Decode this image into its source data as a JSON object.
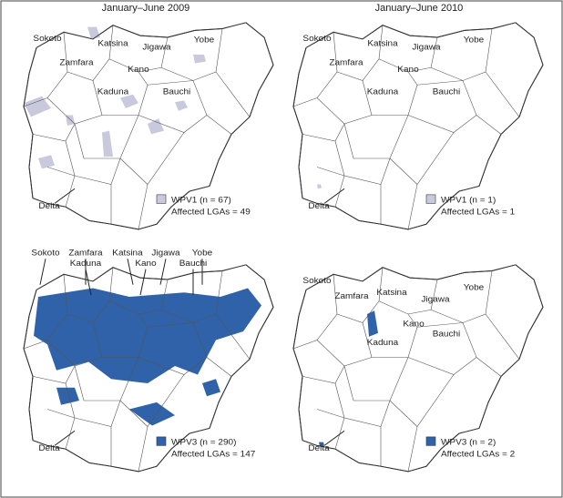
{
  "headers": [
    "January–June 2009",
    "January–June 2010"
  ],
  "panels": [
    {
      "labels": [
        "Sokoto",
        "Katsina",
        "Jigawa",
        "Yobe",
        "Zamfara",
        "Kano",
        "Kaduna",
        "Bauchi",
        "Delta"
      ],
      "legend": {
        "series": "WPV1 (n = 67)",
        "lgas": "Affected LGAs = 49"
      }
    },
    {
      "labels": [
        "Sokoto",
        "Katsina",
        "Jigawa",
        "Yobe",
        "Zamfara",
        "Kano",
        "Kaduna",
        "Bauchi",
        "Delta"
      ],
      "legend": {
        "series": "WPV1 (n = 1)",
        "lgas": "Affected LGAs = 1"
      }
    },
    {
      "labels": [
        "Sokoto",
        "Zamfara",
        "Katsina",
        "Jigawa",
        "Yobe",
        "Kaduna",
        "Kano",
        "Bauchi",
        "Delta"
      ],
      "legend": {
        "series": "WPV3 (n = 290)",
        "lgas": "Affected LGAs = 147"
      }
    },
    {
      "labels": [
        "Sokoto",
        "Zamfara",
        "Katsina",
        "Jigawa",
        "Yobe",
        "Kano",
        "Kaduna",
        "Bauchi",
        "Delta"
      ],
      "legend": {
        "series": "WPV3 (n = 2)",
        "lgas": "Affected LGAs = 2"
      }
    }
  ]
}
